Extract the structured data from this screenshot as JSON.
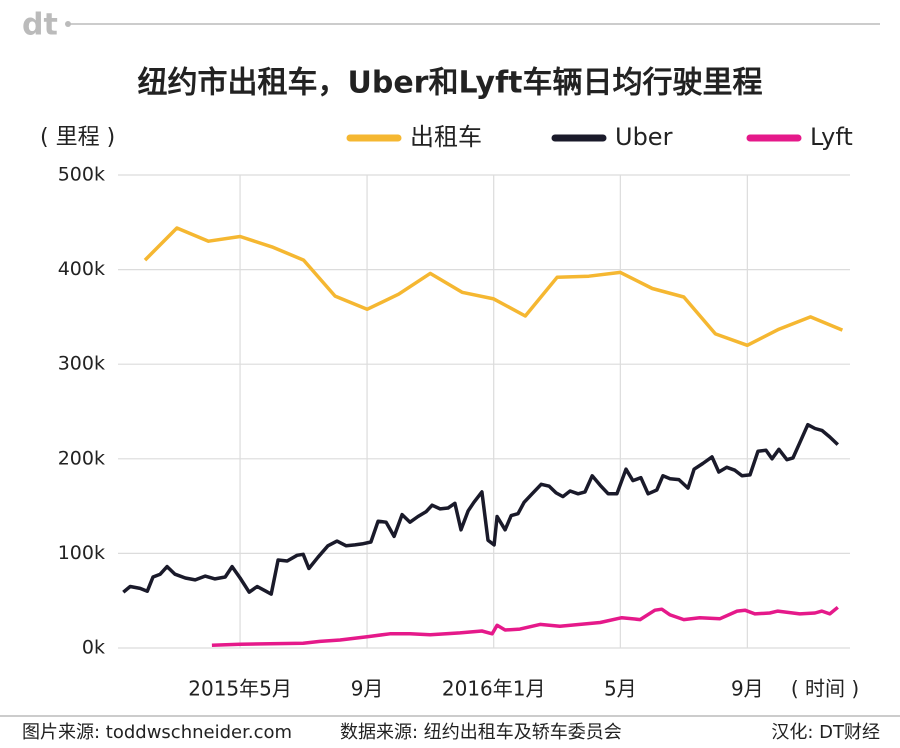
{
  "logo": "dt",
  "chart_data": {
    "type": "line",
    "title": "纽约市出租车，Uber和Lyft车辆日均行驶里程",
    "y_label": "( 里程 )",
    "x_label": "( 时间 )",
    "xlim": [
      2015.012,
      2016.937
    ],
    "xticks": [
      {
        "value": 2015.333,
        "label": "2015年5月"
      },
      {
        "value": 2015.667,
        "label": "9月"
      },
      {
        "value": 2016.0,
        "label": "2016年1月"
      },
      {
        "value": 2016.333,
        "label": "5月"
      },
      {
        "value": 2016.667,
        "label": "9月"
      }
    ],
    "ylim": [
      0,
      500
    ],
    "yticks": [
      {
        "value": 0,
        "label": "0k"
      },
      {
        "value": 100,
        "label": "100k"
      },
      {
        "value": 200,
        "label": "200k"
      },
      {
        "value": 300,
        "label": "300k"
      },
      {
        "value": 400,
        "label": "400k"
      },
      {
        "value": 500,
        "label": "500k"
      }
    ],
    "grid": true,
    "series": [
      {
        "name": "出租车",
        "color": "#f5b731",
        "x": [
          2015.083,
          2015.167,
          2015.25,
          2015.333,
          2015.417,
          2015.5,
          2015.583,
          2015.667,
          2015.75,
          2015.833,
          2015.917,
          2016.0,
          2016.083,
          2016.167,
          2016.25,
          2016.333,
          2016.417,
          2016.5,
          2016.583,
          2016.667,
          2016.75,
          2016.833,
          2016.917
        ],
        "values": [
          410,
          444,
          430,
          435,
          424,
          410,
          372,
          358,
          374,
          396,
          376,
          369,
          351,
          392,
          393,
          397,
          380,
          371,
          332,
          320,
          337,
          350,
          336
        ]
      },
      {
        "name": "Uber",
        "color": "#1a1a2a",
        "x": [
          2015.026,
          2015.044,
          2015.07,
          2015.089,
          2015.104,
          2015.123,
          2015.141,
          2015.162,
          2015.189,
          2015.215,
          2015.241,
          2015.267,
          2015.294,
          2015.312,
          2015.333,
          2015.357,
          2015.378,
          2015.401,
          2015.415,
          2015.433,
          2015.457,
          2015.483,
          2015.499,
          2015.514,
          2015.538,
          2015.564,
          2015.588,
          2015.612,
          2015.635,
          2015.654,
          2015.677,
          2015.696,
          2015.717,
          2015.738,
          2015.759,
          2015.78,
          2015.801,
          2015.822,
          2015.838,
          2015.859,
          2015.88,
          2015.898,
          2015.914,
          2015.933,
          2015.948,
          2015.969,
          2015.985,
          2016.001,
          2016.009,
          2016.03,
          2016.046,
          2016.064,
          2016.08,
          2016.101,
          2016.125,
          2016.146,
          2016.164,
          2016.182,
          2016.201,
          2016.222,
          2016.24,
          2016.259,
          2016.28,
          2016.301,
          2016.324,
          2016.348,
          2016.366,
          2016.387,
          2016.406,
          2016.429,
          2016.445,
          2016.464,
          2016.487,
          2016.511,
          2016.527,
          2016.55,
          2016.574,
          2016.592,
          2016.613,
          2016.634,
          2016.653,
          2016.674,
          2016.695,
          2016.716,
          2016.732,
          2016.75,
          2016.771,
          2016.787,
          2016.805,
          2016.826,
          2016.845,
          2016.863,
          2016.884,
          2016.905
        ],
        "values": [
          59,
          65,
          63,
          60,
          75,
          78,
          86,
          78,
          74,
          72,
          76,
          73,
          75,
          86,
          74,
          59,
          65,
          60,
          57,
          93,
          92,
          98,
          99,
          84,
          96,
          108,
          113,
          108,
          109,
          110,
          112,
          134,
          133,
          118,
          141,
          133,
          139,
          144,
          151,
          147,
          148,
          153,
          125,
          145,
          154,
          165,
          114,
          109,
          139,
          125,
          140,
          142,
          154,
          163,
          173,
          171,
          164,
          160,
          166,
          163,
          165,
          182,
          172,
          163,
          163,
          189,
          177,
          180,
          163,
          167,
          182,
          179,
          178,
          169,
          189,
          195,
          202,
          186,
          191,
          188,
          182,
          183,
          208,
          209,
          200,
          210,
          199,
          201,
          217,
          236,
          232,
          230,
          223,
          215
        ]
      },
      {
        "name": "Lyft",
        "color": "#e5198a",
        "x": [
          2015.259,
          2015.333,
          2015.412,
          2015.499,
          2015.543,
          2015.596,
          2015.67,
          2015.727,
          2015.78,
          2015.833,
          2015.911,
          2015.969,
          2015.996,
          2016.009,
          2016.03,
          2016.069,
          2016.122,
          2016.174,
          2016.227,
          2016.28,
          2016.337,
          2016.385,
          2016.424,
          2016.442,
          2016.464,
          2016.5,
          2016.542,
          2016.595,
          2016.64,
          2016.661,
          2016.687,
          2016.726,
          2016.747,
          2016.805,
          2016.845,
          2016.863,
          2016.884,
          2016.905
        ],
        "values": [
          3,
          4,
          4.5,
          5,
          7,
          8.5,
          12,
          15,
          15,
          14,
          16,
          18,
          15,
          24,
          19,
          20,
          25,
          23,
          25,
          27,
          32,
          30,
          40,
          41,
          35,
          30,
          32,
          31,
          39,
          40,
          36,
          37,
          39,
          36,
          37,
          39,
          36,
          43
        ]
      }
    ]
  },
  "footer": {
    "image_source": "图片来源: toddwschneider.com",
    "data_source": "数据来源: 纽约出租车及轿车委员会",
    "credit": "汉化: DT财经"
  }
}
